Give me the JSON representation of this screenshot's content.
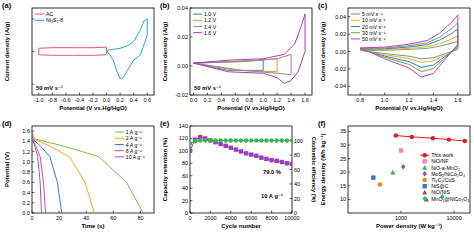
{
  "chart_data": [
    {
      "type": "line",
      "title": "(a)",
      "x_label": "Potential (V vs.Hg/HgO)",
      "y_label": "Current density (A/g)",
      "xlim": [
        -1.1,
        0.7
      ],
      "ylim": [
        -4,
        4
      ],
      "xticks": [
        {
          "value": -1,
          "label": "-1.0"
        },
        -0.8,
        -0.6,
        -0.4,
        -0.2,
        {
          "value": 0,
          "label": "0.0"
        },
        0.2,
        0.4,
        0.6
      ],
      "yticks": [
        -3,
        0,
        3
      ],
      "tick_labels": "x",
      "legend": "upper left",
      "annotations": [
        "50 mV s⁻¹"
      ],
      "series": [
        {
          "name": "AC",
          "color": "#e8566e",
          "x": [
            -1,
            -0.8,
            -0.5,
            -0.2,
            0,
            0,
            -0.2,
            -0.5,
            -0.8,
            -1,
            -1
          ],
          "values": [
            0.3,
            0.35,
            0.35,
            0.35,
            0.4,
            -0.3,
            -0.35,
            -0.35,
            -0.35,
            -0.3,
            0.3
          ]
        },
        {
          "name": "Ni₃S₂-8",
          "color": "#29a3e0",
          "x": [
            0,
            0.1,
            0.2,
            0.3,
            0.4,
            0.5,
            0.55,
            0.6,
            0.6,
            0.5,
            0.4,
            0.3,
            0.25,
            0.2,
            0.15,
            0.1,
            0
          ],
          "values": [
            0.1,
            0.2,
            0.3,
            0.5,
            0.9,
            2.0,
            2.8,
            3.0,
            1.5,
            -0.3,
            -0.8,
            -1.8,
            -2.4,
            -2.5,
            -1.8,
            -0.8,
            0.1
          ]
        }
      ]
    },
    {
      "type": "line",
      "title": "(b)",
      "x_label": "Potential (V vs.Hg/HgO)",
      "y_label": "Current density (A/g)",
      "xlim": [
        -0.05,
        1.7
      ],
      "ylim": [
        -0.02,
        0.04
      ],
      "xticks": [
        {
          "value": 0,
          "label": "0.0"
        },
        0.2,
        0.4,
        0.6,
        0.8,
        {
          "value": 1,
          "label": "1.0"
        },
        1.2,
        1.4,
        1.6
      ],
      "yticks": [
        -0.02,
        {
          "value": 0,
          "label": "0.00"
        },
        0.02,
        0.04
      ],
      "legend": "upper left",
      "annotations": [
        "50 mV s⁻¹"
      ],
      "series": [
        {
          "name": "1.0 V",
          "color": "#3a78c9",
          "x": [
            0,
            0.5,
            1.0,
            1.0,
            0.5,
            0
          ],
          "values": [
            0.002,
            0.003,
            0.004,
            -0.003,
            -0.003,
            0.002
          ]
        },
        {
          "name": "1.2 V",
          "color": "#f28e2b",
          "x": [
            0,
            0.6,
            1.2,
            1.2,
            0.6,
            0
          ],
          "values": [
            0.002,
            0.003,
            0.005,
            -0.004,
            -0.003,
            0.002
          ]
        },
        {
          "name": "1.4 V",
          "color": "#8c8c8c",
          "x": [
            0,
            0.7,
            1.2,
            1.4,
            1.4,
            1.2,
            0.7,
            0
          ],
          "values": [
            0.002,
            0.003,
            0.005,
            0.008,
            -0.006,
            -0.005,
            -0.003,
            0.002
          ]
        },
        {
          "name": "1.6 V",
          "color": "#a23fc2",
          "x": [
            0,
            0.5,
            1.0,
            1.3,
            1.45,
            1.55,
            1.6,
            1.6,
            1.5,
            1.4,
            1.3,
            1.2,
            1.0,
            0.5,
            0
          ],
          "values": [
            0.002,
            0.004,
            0.005,
            0.008,
            0.015,
            0.028,
            0.036,
            0.01,
            -0.004,
            -0.01,
            -0.012,
            -0.008,
            -0.005,
            -0.004,
            0.002
          ]
        }
      ]
    },
    {
      "type": "line",
      "title": "(c)",
      "x_label": "Potential (V vs.Hg/HgO)",
      "y_label": "Current density (A/g)",
      "xlim": [
        0.7,
        1.7
      ],
      "ylim": [
        -0.05,
        0.05
      ],
      "xticks": [
        0.8,
        {
          "value": 1,
          "label": "1.0"
        },
        1.2,
        1.4,
        1.6
      ],
      "yticks": [
        -0.04,
        -0.02,
        {
          "value": 0,
          "label": "0.00"
        },
        0.02,
        0.04
      ],
      "legend": "upper left",
      "series": [
        {
          "name": "5 mV s⁻¹",
          "color": "#8c8c8c",
          "x": [
            0.8,
            1.0,
            1.2,
            1.35,
            1.45,
            1.55,
            1.6,
            1.6,
            1.5,
            1.4,
            1.3,
            1.2,
            1.0,
            0.8
          ],
          "values": [
            0.0012,
            0.0014,
            0.0024,
            0.0036,
            0.006,
            0.0096,
            0.012,
            0.0024,
            -0.0024,
            -0.0072,
            -0.0084,
            -0.0054,
            -0.0024,
            0.0012
          ]
        },
        {
          "name": "10 mV s⁻¹",
          "color": "#e6b422",
          "x": [
            0.8,
            1.0,
            1.2,
            1.35,
            1.45,
            1.55,
            1.6,
            1.6,
            1.5,
            1.4,
            1.3,
            1.2,
            1.0,
            0.8
          ],
          "values": [
            0.0018,
            0.0022,
            0.0036,
            0.0054,
            0.009,
            0.0144,
            0.018,
            0.0036,
            -0.0036,
            -0.0108,
            -0.0126,
            -0.0081,
            -0.0036,
            0.0018
          ]
        },
        {
          "name": "20 mV s⁻¹",
          "color": "#3a78c9",
          "x": [
            0.8,
            1.0,
            1.2,
            1.35,
            1.45,
            1.55,
            1.6,
            1.6,
            1.5,
            1.4,
            1.3,
            1.2,
            1.0,
            0.8
          ],
          "values": [
            0.0026,
            0.0031,
            0.0052,
            0.0078,
            0.013,
            0.0208,
            0.026,
            0.0052,
            -0.0052,
            -0.0156,
            -0.0182,
            -0.0117,
            -0.0052,
            0.0026
          ]
        },
        {
          "name": "30 mV s⁻¹",
          "color": "#6aa84f",
          "x": [
            0.8,
            1.0,
            1.2,
            1.35,
            1.45,
            1.55,
            1.6,
            1.6,
            1.5,
            1.4,
            1.3,
            1.2,
            1.0,
            0.8
          ],
          "values": [
            0.0033,
            0.004,
            0.0066,
            0.0099,
            0.0165,
            0.0264,
            0.033,
            0.0066,
            -0.0066,
            -0.0198,
            -0.0231,
            -0.0149,
            -0.0066,
            0.0033
          ]
        },
        {
          "name": "50 mV s⁻¹",
          "color": "#c040c0",
          "x": [
            0.8,
            1.0,
            1.2,
            1.35,
            1.45,
            1.55,
            1.6,
            1.6,
            1.5,
            1.4,
            1.3,
            1.2,
            1.0,
            0.8
          ],
          "values": [
            0.0042,
            0.005,
            0.0084,
            0.0126,
            0.021,
            0.0336,
            0.042,
            0.0084,
            -0.0084,
            -0.0252,
            -0.0294,
            -0.0189,
            -0.0084,
            0.0042
          ]
        }
      ]
    },
    {
      "type": "line",
      "title": "(d)",
      "x_label": "Time (s)",
      "y_label": "Potential (V)",
      "xlim": [
        0,
        90
      ],
      "ylim": [
        0,
        1.7
      ],
      "xticks": [
        0,
        20,
        40,
        60,
        80
      ],
      "yticks": [
        {
          "value": 0,
          "label": "0.0"
        },
        0.2,
        0.4,
        0.6,
        0.8,
        {
          "value": 1,
          "label": "1.0"
        },
        1.2,
        1.4,
        1.6
      ],
      "legend": "upper right",
      "series": [
        {
          "name": "1 A g⁻¹",
          "color": "#7cc242",
          "x": [
            0,
            1.6,
            24.6,
            49.2,
            69.7,
            82
          ],
          "values": [
            1.6,
            1.45,
            1.3,
            1.1,
            0.6,
            0
          ]
        },
        {
          "name": "2 A g⁻¹",
          "color": "#f5a623",
          "x": [
            0,
            0.9,
            13.8,
            27.6,
            39.1,
            46
          ],
          "values": [
            1.6,
            1.45,
            1.3,
            1.1,
            0.6,
            0
          ]
        },
        {
          "name": "4 A g⁻¹",
          "color": "#2d7fd3",
          "x": [
            0,
            0.4,
            6.6,
            13.2,
            18.7,
            22
          ],
          "values": [
            1.6,
            1.45,
            1.3,
            1.1,
            0.6,
            0
          ]
        },
        {
          "name": "8 A g⁻¹",
          "color": "#e84393",
          "x": [
            0,
            0.2,
            3,
            6,
            8.5,
            10
          ],
          "values": [
            1.6,
            1.45,
            1.3,
            1.1,
            0.6,
            0
          ]
        },
        {
          "name": "10 A g⁻¹",
          "color": "#9b59b6",
          "x": [
            0,
            0.1,
            2.1,
            4.2,
            6,
            7
          ],
          "values": [
            1.6,
            1.45,
            1.3,
            1.1,
            0.6,
            0
          ]
        }
      ]
    },
    {
      "type": "line",
      "title": "(e)",
      "x_label": "Cycle number",
      "y_label": "Capacity retention (%)",
      "y2_label": "Coulombic efficiency (%)",
      "xlim": [
        0,
        10000
      ],
      "ylim": [
        0,
        140
      ],
      "y2lim": [
        0,
        120
      ],
      "xticks": [
        0,
        2000,
        4000,
        6000,
        8000,
        10000
      ],
      "yticks": [
        0,
        20,
        40,
        60,
        80,
        100,
        120,
        140
      ],
      "y2ticks": [
        0,
        20,
        40,
        60,
        80,
        100
      ],
      "annotations": [
        "79.0 %",
        "10 A g⁻¹"
      ],
      "series": [
        {
          "color": "#9b3fbf",
          "marker": "square",
          "line_style": "solid",
          "x": [
            0,
            500,
            1000,
            1500,
            2000,
            2500,
            3000,
            3500,
            4000,
            4500,
            5000,
            5500,
            6000,
            6500,
            7000,
            7500,
            8000,
            8500,
            9000,
            9500,
            10000
          ],
          "values": [
            100,
            118,
            122,
            120,
            117,
            114,
            111,
            108,
            105,
            102,
            99,
            96,
            94,
            92,
            89,
            87,
            85,
            84,
            82,
            80,
            79
          ]
        },
        {
          "color": "#3cb44b",
          "marker": "circle",
          "line_style": "solid",
          "axis": "y2",
          "x": [
            0,
            500,
            1000,
            1500,
            2000,
            2500,
            3000,
            3500,
            4000,
            4500,
            5000,
            5500,
            6000,
            6500,
            7000,
            7500,
            8000,
            8500,
            9000,
            9500,
            10000
          ],
          "values": [
            96,
            99,
            100,
            100,
            100,
            100,
            100,
            100,
            100,
            100,
            100,
            100,
            100,
            100,
            100,
            100,
            100,
            100,
            100,
            100,
            100
          ]
        }
      ]
    },
    {
      "type": "scatter",
      "title": "(f)",
      "x_label": "Power density (W kg⁻¹)",
      "y_label": "Energy density (Wh kg⁻¹)",
      "log": "x",
      "xlim": [
        100,
        20000
      ],
      "ylim": [
        5,
        37
      ],
      "xticks": [
        1000,
        10000
      ],
      "yticks": [
        10,
        15,
        20,
        25,
        30,
        35
      ],
      "legend": "right",
      "series": [
        {
          "name": "This work",
          "color": "#e41a1c",
          "type": "line",
          "marker": "circle",
          "line_style": "solid",
          "x": [
            800,
            1600,
            4000,
            8000,
            16000
          ],
          "values": [
            33.5,
            33,
            32.5,
            32,
            31.5
          ]
        },
        {
          "name": "NiO/NF",
          "color": "#f781bf",
          "marker": "square",
          "x": [
            1000
          ],
          "values": [
            28
          ]
        },
        {
          "name": "NiO-a-MnO₂",
          "color": "#4daf4a",
          "marker": "triangle",
          "x": [
            700
          ],
          "values": [
            20
          ]
        },
        {
          "name": "MoS₂/NiCo₂O₄",
          "color": "#984ea3",
          "marker": "diamond",
          "x": [
            1100
          ],
          "values": [
            22
          ]
        },
        {
          "name": "Ti₃C₂/CuS",
          "color": "#ff7f00",
          "marker": "circle",
          "x": [
            400
          ],
          "values": [
            15.5
          ]
        },
        {
          "name": "NiS@C",
          "color": "#377eb8",
          "marker": "square",
          "x": [
            300
          ],
          "values": [
            18
          ]
        },
        {
          "name": "NiO/NiS",
          "color": "#a65628",
          "marker": "triangle",
          "x": [
            3000
          ],
          "values": [
            10
          ]
        },
        {
          "name": "MnO₂@NiCo₂O₄",
          "color": "#17becf",
          "marker": "diamond",
          "x": [
            6000
          ],
          "values": [
            11
          ]
        }
      ]
    }
  ]
}
